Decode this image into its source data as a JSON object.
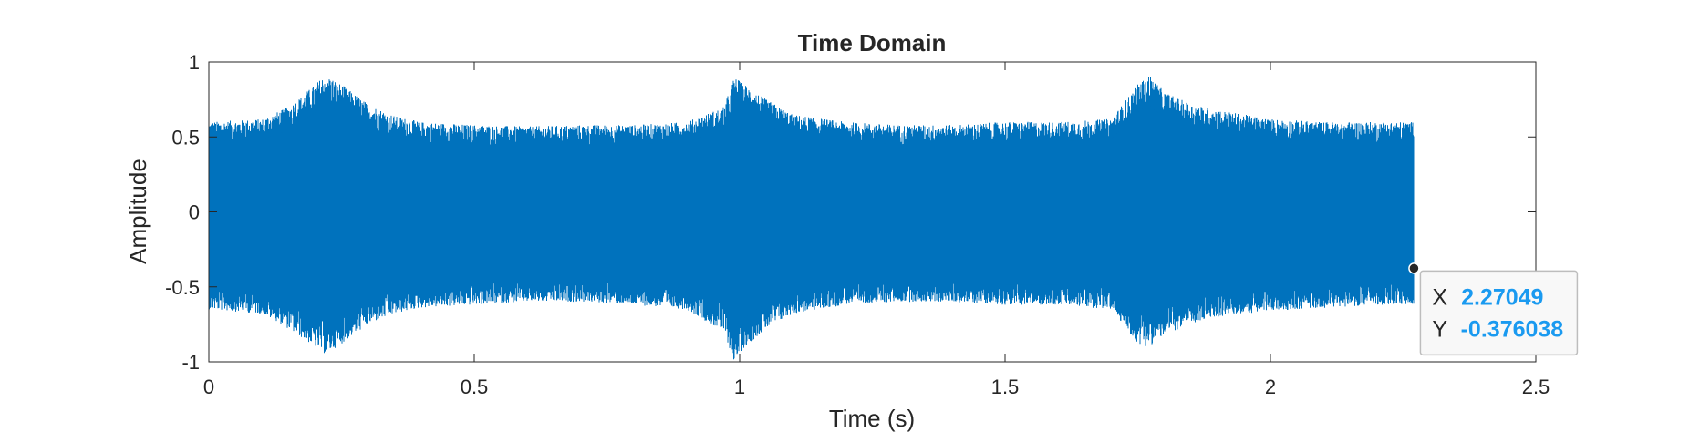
{
  "chart_data": {
    "type": "line",
    "title": "Time Domain",
    "xlabel": "Time (s)",
    "ylabel": "Amplitude",
    "xlim": [
      0,
      2.5
    ],
    "ylim": [
      -1,
      1
    ],
    "xticks": [
      "0",
      "0.5",
      "1",
      "1.5",
      "2",
      "2.5"
    ],
    "xtick_values": [
      0,
      0.5,
      1,
      1.5,
      2,
      2.5
    ],
    "yticks": [
      "-1",
      "-0.5",
      "0",
      "0.5",
      "1"
    ],
    "ytick_values": [
      -1,
      -0.5,
      0,
      0.5,
      1
    ],
    "grid": false,
    "series": [
      {
        "color": "#0072bd",
        "x_end": 2.27049,
        "envelope": {
          "t": [
            0,
            0.1,
            0.15,
            0.2,
            0.22,
            0.25,
            0.3,
            0.35,
            0.4,
            0.5,
            0.6,
            0.7,
            0.8,
            0.9,
            0.97,
            0.99,
            1.01,
            1.05,
            1.1,
            1.2,
            1.3,
            1.4,
            1.5,
            1.6,
            1.7,
            1.75,
            1.77,
            1.8,
            1.85,
            1.9,
            2.0,
            2.1,
            2.2,
            2.27
          ],
          "upper": [
            0.6,
            0.62,
            0.7,
            0.85,
            0.92,
            0.85,
            0.72,
            0.64,
            0.6,
            0.58,
            0.57,
            0.58,
            0.58,
            0.6,
            0.7,
            0.9,
            0.85,
            0.75,
            0.65,
            0.6,
            0.58,
            0.58,
            0.6,
            0.6,
            0.62,
            0.85,
            0.92,
            0.8,
            0.72,
            0.68,
            0.62,
            0.6,
            0.6,
            0.6
          ],
          "lower": [
            -0.65,
            -0.68,
            -0.78,
            -0.9,
            -0.95,
            -0.88,
            -0.75,
            -0.68,
            -0.64,
            -0.62,
            -0.6,
            -0.6,
            -0.62,
            -0.65,
            -0.8,
            -1.0,
            -0.9,
            -0.78,
            -0.68,
            -0.62,
            -0.6,
            -0.6,
            -0.62,
            -0.62,
            -0.65,
            -0.88,
            -0.9,
            -0.82,
            -0.75,
            -0.7,
            -0.66,
            -0.64,
            -0.62,
            -0.62
          ]
        }
      }
    ],
    "datatip": {
      "x_label": "X",
      "y_label": "Y",
      "x_value": "2.27049",
      "y_value": "-0.376038",
      "x": 2.27049,
      "y": -0.376038
    }
  }
}
